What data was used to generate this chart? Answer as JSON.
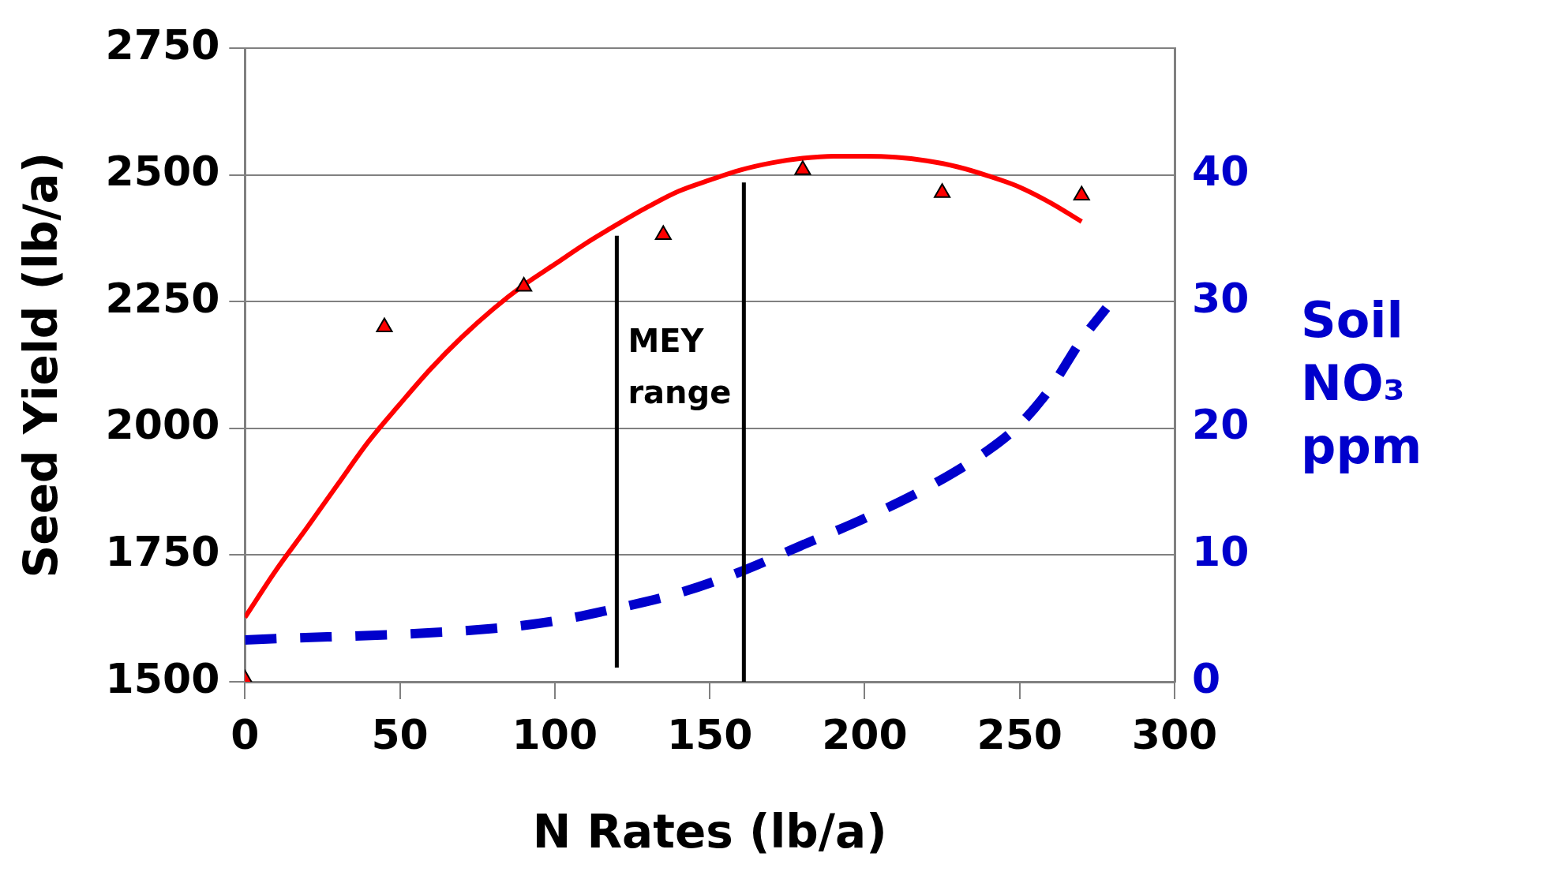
{
  "chart_data": {
    "type": "line",
    "xlabel": "N Rates (lb/a)",
    "ylabel": "Seed Yield (lb/a)",
    "y2label": "Soil NO₃ ppm",
    "xlim": [
      0,
      300
    ],
    "xticks": [
      0,
      50,
      100,
      150,
      200,
      250,
      300
    ],
    "ylim": [
      1500,
      2750
    ],
    "yticks": [
      1500,
      1750,
      2000,
      2250,
      2500,
      2750
    ],
    "y2lim": [
      0,
      50
    ],
    "y2ticks": [
      0,
      10,
      20,
      30,
      40
    ],
    "grid": "y",
    "legend": false,
    "series": [
      {
        "type": "scatter",
        "marker": "triangle",
        "color": "#ff0000",
        "x": [
          0,
          45,
          90,
          135,
          180,
          225,
          270
        ],
        "values": [
          1505,
          2200,
          2280,
          2382,
          2510,
          2465,
          2460
        ]
      },
      {
        "type": "line",
        "marker": "none",
        "line_style": "solid",
        "color": "#ff0000",
        "x": [
          0,
          10,
          20,
          30,
          40,
          50,
          60,
          70,
          80,
          90,
          100,
          110,
          120,
          130,
          140,
          150,
          160,
          170,
          180,
          190,
          200,
          210,
          220,
          230,
          240,
          250,
          260,
          270
        ],
        "values": [
          1627,
          1720,
          1804,
          1890,
          1975,
          2048,
          2118,
          2180,
          2235,
          2283,
          2324,
          2365,
          2402,
          2437,
          2468,
          2490,
          2510,
          2524,
          2533,
          2537,
          2537,
          2535,
          2528,
          2516,
          2498,
          2476,
          2445,
          2408
        ]
      },
      {
        "type": "line",
        "marker": "none",
        "line_style": "dashed",
        "axis": "y2",
        "color": "#0000cc",
        "x": [
          0,
          80,
          100,
          120,
          140,
          160,
          180,
          200,
          220,
          240,
          250,
          260,
          270,
          278
        ],
        "values": [
          3.3,
          4.2,
          4.8,
          5.8,
          7,
          8.7,
          10.8,
          12.9,
          15.3,
          18.3,
          20.3,
          23.2,
          27,
          29.5
        ]
      }
    ],
    "ref_lines": [
      {
        "axis": "x",
        "value": 120,
        "color": "#000000"
      },
      {
        "axis": "x",
        "value": 161,
        "color": "#000000"
      }
    ],
    "annotations": [
      "MEY range"
    ]
  }
}
